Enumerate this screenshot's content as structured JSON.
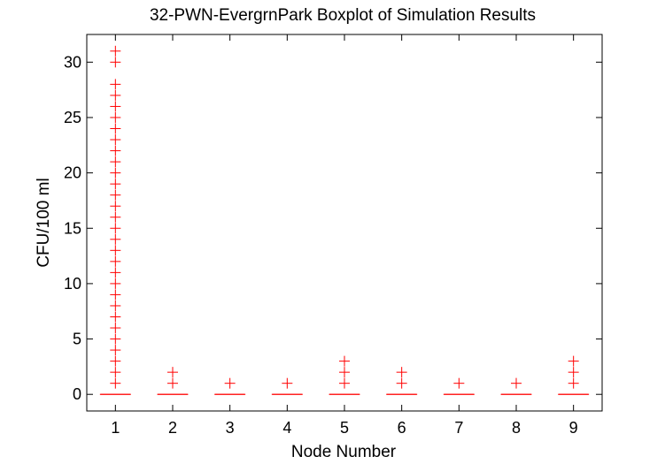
{
  "chart_data": {
    "type": "boxplot",
    "title": "32-PWN-EvergrnPark Boxplot of Simulation Results",
    "xlabel": "Node Number",
    "ylabel": "CFU/100 ml",
    "categories": [
      "1",
      "2",
      "3",
      "4",
      "5",
      "6",
      "7",
      "8",
      "9"
    ],
    "ylim": [
      -1.5,
      32.5
    ],
    "yticks": [
      0,
      5,
      10,
      15,
      20,
      25,
      30
    ],
    "grid": false,
    "colors": {
      "box": "#ff0000",
      "outlier": "#ff0000",
      "axis": "#000000"
    },
    "series": [
      {
        "node": "1",
        "median": 0,
        "q1": 0,
        "q3": 0,
        "whisker_low": 0,
        "whisker_high": 0,
        "outliers": [
          1,
          2,
          3,
          4,
          5,
          6,
          7,
          8,
          9,
          10,
          11,
          12,
          13,
          14,
          15,
          16,
          17,
          18,
          19,
          20,
          21,
          22,
          23,
          24,
          25,
          26,
          27,
          28,
          30,
          31
        ]
      },
      {
        "node": "2",
        "median": 0,
        "q1": 0,
        "q3": 0,
        "whisker_low": 0,
        "whisker_high": 0,
        "outliers": [
          1,
          2
        ]
      },
      {
        "node": "3",
        "median": 0,
        "q1": 0,
        "q3": 0,
        "whisker_low": 0,
        "whisker_high": 0,
        "outliers": [
          1
        ]
      },
      {
        "node": "4",
        "median": 0,
        "q1": 0,
        "q3": 0,
        "whisker_low": 0,
        "whisker_high": 0,
        "outliers": [
          1
        ]
      },
      {
        "node": "5",
        "median": 0,
        "q1": 0,
        "q3": 0,
        "whisker_low": 0,
        "whisker_high": 0,
        "outliers": [
          1,
          2,
          3
        ]
      },
      {
        "node": "6",
        "median": 0,
        "q1": 0,
        "q3": 0,
        "whisker_low": 0,
        "whisker_high": 0,
        "outliers": [
          1,
          2
        ]
      },
      {
        "node": "7",
        "median": 0,
        "q1": 0,
        "q3": 0,
        "whisker_low": 0,
        "whisker_high": 0,
        "outliers": [
          1
        ]
      },
      {
        "node": "8",
        "median": 0,
        "q1": 0,
        "q3": 0,
        "whisker_low": 0,
        "whisker_high": 0,
        "outliers": [
          1
        ]
      },
      {
        "node": "9",
        "median": 0,
        "q1": 0,
        "q3": 0,
        "whisker_low": 0,
        "whisker_high": 0,
        "outliers": [
          1,
          2,
          3
        ]
      }
    ]
  }
}
